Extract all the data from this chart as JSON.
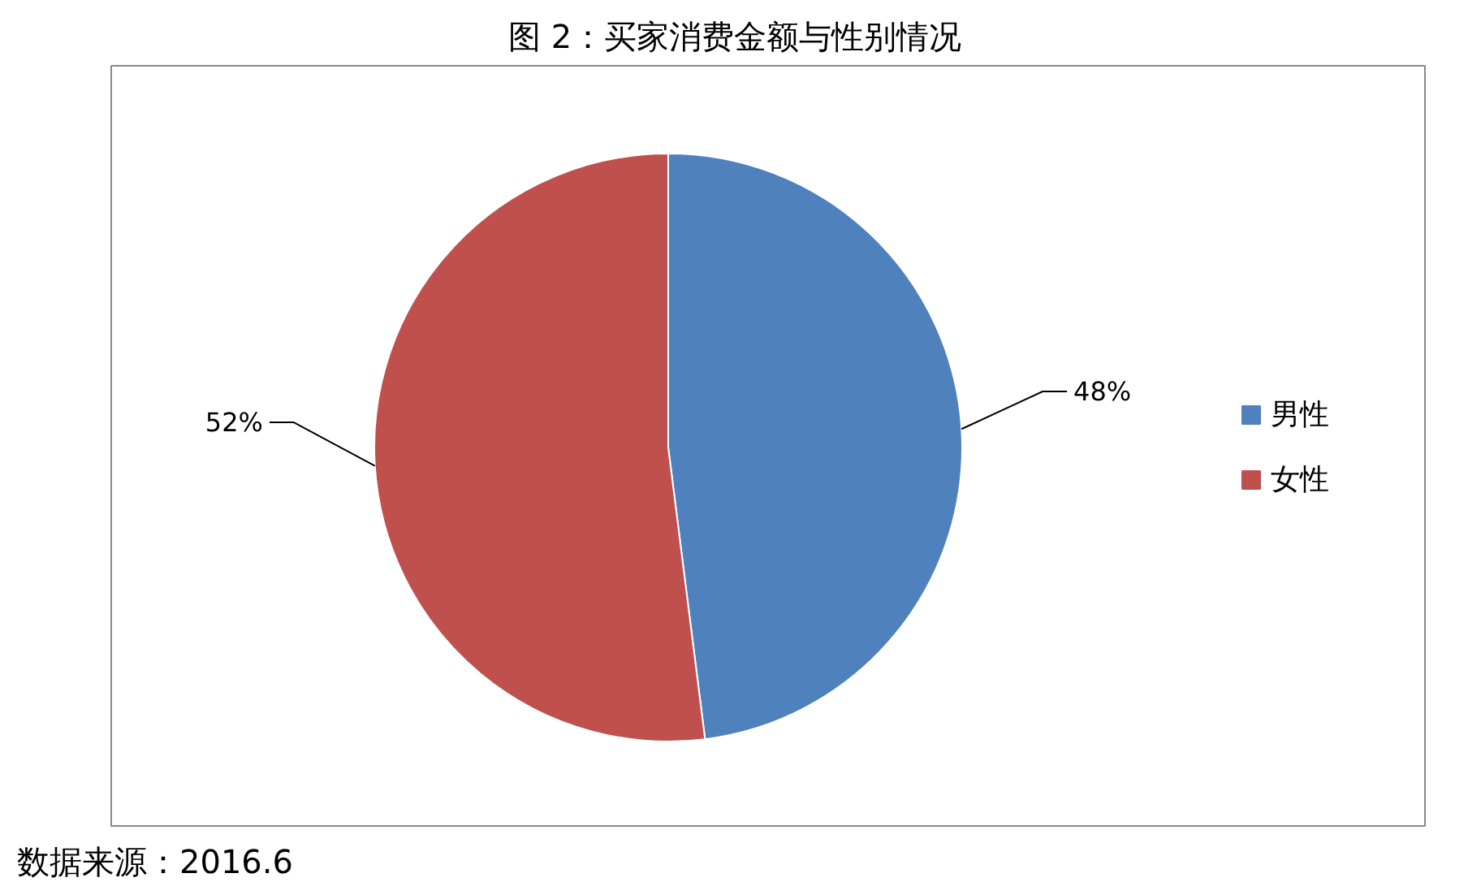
{
  "chart_data": {
    "type": "pie",
    "title": "图 2：买家消费金额与性别情况",
    "categories": [
      "男性",
      "女性"
    ],
    "values": [
      48,
      52
    ],
    "colors": [
      "#4f81bd",
      "#c0504d"
    ],
    "value_labels": [
      "48%",
      "52%"
    ],
    "legend": "right",
    "annotations": [
      "数据来源：2016.6"
    ]
  }
}
